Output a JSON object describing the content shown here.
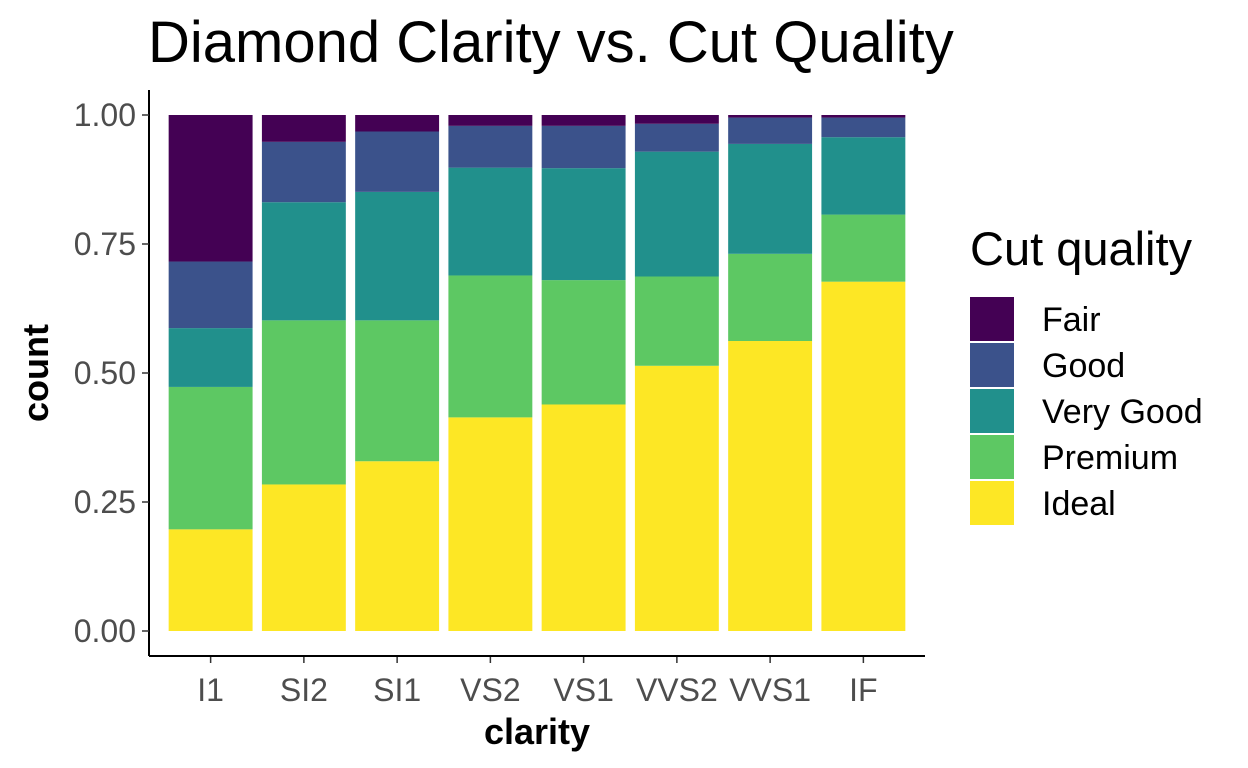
{
  "chart_data": {
    "type": "bar",
    "stacked": true,
    "normalized": true,
    "title": "Diamond Clarity vs. Cut Quality",
    "xlabel": "clarity",
    "ylabel": "count",
    "ylim": [
      0,
      1
    ],
    "yticks": [
      "0.00",
      "0.25",
      "0.50",
      "0.75",
      "1.00"
    ],
    "categories": [
      "I1",
      "SI2",
      "SI1",
      "VS2",
      "VS1",
      "VVS2",
      "VVS1",
      "IF"
    ],
    "legend": {
      "title": "Cut quality",
      "placement": "right"
    },
    "series": [
      {
        "name": "Fair",
        "color": "#440154",
        "values": [
          0.284,
          0.052,
          0.032,
          0.021,
          0.021,
          0.017,
          0.005,
          0.005
        ]
      },
      {
        "name": "Good",
        "color": "#3b528b",
        "values": [
          0.129,
          0.117,
          0.117,
          0.081,
          0.082,
          0.054,
          0.051,
          0.038
        ]
      },
      {
        "name": "Very Good",
        "color": "#21908c",
        "values": [
          0.114,
          0.229,
          0.249,
          0.209,
          0.217,
          0.242,
          0.213,
          0.15
        ]
      },
      {
        "name": "Premium",
        "color": "#5dc863",
        "values": [
          0.276,
          0.318,
          0.273,
          0.275,
          0.241,
          0.173,
          0.169,
          0.13
        ]
      },
      {
        "name": "Ideal",
        "color": "#fde725",
        "values": [
          0.197,
          0.284,
          0.329,
          0.414,
          0.439,
          0.514,
          0.562,
          0.677
        ]
      }
    ]
  }
}
